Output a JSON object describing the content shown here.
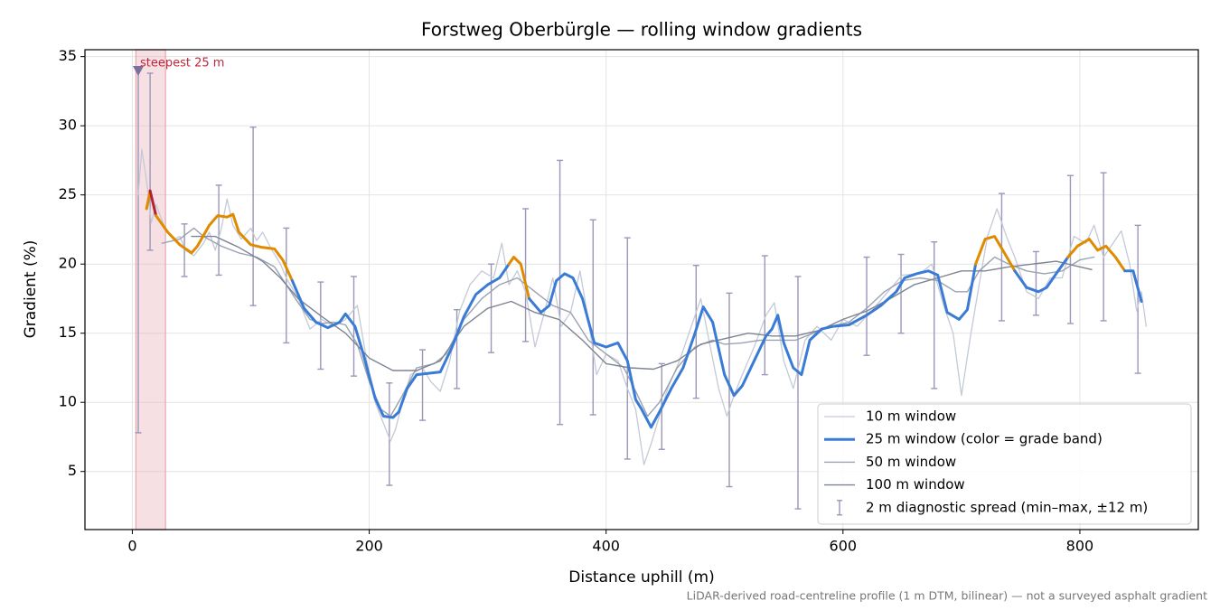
{
  "chart_data": {
    "type": "line",
    "title": "Forstweg Oberbürgle — rolling window gradients",
    "xlabel": "Distance uphill (m)",
    "ylabel": "Gradient (%)",
    "footnote": "LiDAR-derived road-centreline profile (1 m DTM, bilinear) — not a surveyed asphalt gradient",
    "xlim": [
      -40,
      900
    ],
    "ylim": [
      0.8,
      35.5
    ],
    "xticks": [
      0,
      200,
      400,
      600,
      800
    ],
    "yticks": [
      5,
      10,
      15,
      20,
      25,
      30,
      35
    ],
    "grid": true,
    "legend": "lower right",
    "series": [
      {
        "name": "10 m window",
        "color": "#c3cad6",
        "width": 1.3,
        "x": [
          5,
          8,
          12,
          16,
          20,
          28,
          35,
          40,
          45,
          52,
          60,
          65,
          70,
          75,
          80,
          85,
          92,
          100,
          105,
          110,
          118,
          125,
          130,
          140,
          150,
          160,
          170,
          180,
          190,
          198,
          205,
          212,
          218,
          222,
          228,
          235,
          245,
          252,
          260,
          268,
          276,
          285,
          295,
          305,
          312,
          318,
          325,
          332,
          340,
          348,
          355,
          362,
          370,
          378,
          385,
          392,
          400,
          410,
          418,
          425,
          432,
          438,
          445,
          452,
          462,
          472,
          480,
          488,
          495,
          502,
          508,
          515,
          525,
          535,
          542,
          550,
          558,
          568,
          578,
          590,
          600,
          612,
          625,
          640,
          650,
          665,
          675,
          685,
          693,
          700,
          708,
          715,
          722,
          730,
          738,
          745,
          755,
          765,
          775,
          785,
          795,
          805,
          812,
          820,
          828,
          835,
          842,
          848,
          852,
          856
        ],
        "values": [
          25,
          28.3,
          26,
          23,
          24.3,
          22.5,
          21.8,
          22,
          21,
          20.6,
          21.5,
          22.3,
          21,
          22.5,
          24.7,
          22.8,
          21.8,
          22.6,
          21.7,
          22.3,
          21,
          20,
          19,
          17.5,
          15.3,
          16,
          15.5,
          16,
          17,
          13,
          10,
          8.5,
          7.2,
          8,
          10,
          12,
          12.5,
          11.5,
          10.8,
          13,
          16.5,
          18.5,
          19.5,
          19,
          21.5,
          18.5,
          19.5,
          18,
          14,
          16.5,
          19,
          15.5,
          16.5,
          19.5,
          16,
          12,
          13.5,
          13,
          11,
          9.5,
          5.5,
          7,
          9,
          11,
          13,
          15.5,
          17.5,
          14,
          11,
          9,
          10.5,
          12,
          14,
          16.3,
          17.2,
          13,
          11,
          14.5,
          15.5,
          14.5,
          16,
          15.5,
          16.7,
          18.2,
          19.2,
          19.3,
          20,
          17,
          15,
          10.5,
          15,
          18.5,
          22,
          24,
          22,
          20.5,
          18,
          17.5,
          19,
          19,
          22,
          21.5,
          22.8,
          20.5,
          21.5,
          22.4,
          20,
          16.6,
          18,
          15.5
        ]
      },
      {
        "name": "25 m window (color = grade band)",
        "color": "#3a7bd5",
        "width": 3,
        "x": [
          12,
          15,
          20,
          30,
          40,
          50,
          55,
          65,
          72,
          80,
          85,
          90,
          100,
          110,
          120,
          127,
          135,
          145,
          155,
          165,
          175,
          180,
          188,
          195,
          205,
          212,
          220,
          225,
          232,
          240,
          250,
          260,
          270,
          280,
          290,
          300,
          310,
          318,
          322,
          328,
          335,
          345,
          352,
          358,
          365,
          372,
          380,
          390,
          400,
          410,
          418,
          425,
          430,
          438,
          445,
          455,
          465,
          475,
          482,
          490,
          500,
          508,
          515,
          525,
          535,
          540,
          545,
          550,
          558,
          565,
          572,
          582,
          592,
          605,
          620,
          632,
          645,
          652,
          662,
          672,
          680,
          688,
          698,
          705,
          712,
          720,
          728,
          735,
          745,
          755,
          765,
          772,
          780,
          790,
          798,
          808,
          815,
          822,
          830,
          838,
          845,
          852
        ],
        "values": [
          24,
          25.3,
          23.5,
          22.3,
          21.4,
          20.8,
          21.3,
          22.8,
          23.5,
          23.4,
          23.6,
          22.3,
          21.4,
          21.2,
          21.1,
          20.3,
          18.8,
          16.8,
          15.8,
          15.4,
          15.8,
          16.4,
          15.5,
          13.5,
          10.3,
          9,
          8.9,
          9.3,
          11,
          12,
          12.1,
          12.2,
          14,
          16.2,
          17.8,
          18.5,
          19,
          20,
          20.5,
          20,
          17.5,
          16.5,
          17,
          18.8,
          19.3,
          19,
          17.5,
          14.3,
          14,
          14.3,
          13,
          10.2,
          9.5,
          8.2,
          9.3,
          11,
          12.5,
          15,
          16.9,
          15.8,
          12,
          10.5,
          11.2,
          13,
          14.8,
          15.3,
          16.3,
          14.3,
          12.5,
          12,
          14.5,
          15.3,
          15.5,
          15.6,
          16.3,
          17,
          18,
          19,
          19.3,
          19.5,
          19.2,
          16.5,
          16,
          16.7,
          20,
          21.8,
          22,
          21,
          19.5,
          18.3,
          18,
          18.3,
          19.3,
          20.5,
          21.3,
          21.8,
          21,
          21.3,
          20.5,
          19.5,
          19.5,
          17.3
        ],
        "color_bands": {
          "thresholds": [
            20,
            25
          ],
          "colors": [
            "#3a7bd5",
            "#e08a00",
            "#b22234"
          ]
        }
      },
      {
        "name": "50 m window",
        "color": "#9aa2b2",
        "width": 1.4,
        "x": [
          25,
          40,
          52,
          60,
          75,
          90,
          105,
          120,
          130,
          140,
          150,
          160,
          170,
          180,
          190,
          200,
          210,
          218,
          228,
          240,
          255,
          265,
          280,
          295,
          310,
          325,
          340,
          355,
          370,
          385,
          400,
          415,
          425,
          435,
          445,
          460,
          475,
          490,
          500,
          515,
          530,
          545,
          560,
          575,
          590,
          605,
          620,
          635,
          650,
          665,
          680,
          695,
          705,
          715,
          728,
          740,
          755,
          770,
          785,
          800,
          812
        ],
        "values": [
          21.5,
          21.8,
          22.6,
          22,
          21.3,
          20.8,
          20.5,
          19.8,
          18.5,
          17.2,
          16,
          15.7,
          15.8,
          15.6,
          14.2,
          11.5,
          9.5,
          9,
          10.5,
          12.5,
          12.8,
          13.5,
          16,
          17.5,
          18.5,
          19,
          18,
          17,
          16.5,
          14.5,
          13.5,
          12.5,
          10.8,
          9,
          10,
          12.5,
          14,
          14.5,
          14.2,
          14.3,
          14.5,
          14.5,
          14.5,
          15,
          15.5,
          15.8,
          16.8,
          18,
          18.8,
          19,
          18.8,
          18,
          18,
          19.5,
          20.5,
          20,
          19.5,
          19.3,
          19.5,
          20.3,
          20.5
        ]
      },
      {
        "name": "100 m window",
        "color": "#7d8493",
        "width": 1.4,
        "x": [
          50,
          70,
          90,
          110,
          125,
          140,
          160,
          180,
          200,
          220,
          240,
          260,
          280,
          300,
          320,
          340,
          360,
          380,
          400,
          420,
          440,
          460,
          480,
          500,
          520,
          540,
          560,
          580,
          600,
          620,
          640,
          660,
          680,
          700,
          720,
          740,
          760,
          780,
          800,
          810
        ],
        "values": [
          22,
          22,
          21.2,
          20.2,
          19,
          17.5,
          16.2,
          15,
          13.2,
          12.3,
          12.3,
          13,
          15.5,
          16.8,
          17.3,
          16.5,
          16,
          14.5,
          12.8,
          12.5,
          12.4,
          13,
          14.2,
          14.6,
          15,
          14.8,
          14.8,
          15.2,
          16,
          16.6,
          17.5,
          18.5,
          19,
          19.5,
          19.5,
          19.8,
          20,
          20.2,
          19.8,
          19.6
        ]
      }
    ],
    "errorbars": {
      "name": "2 m diagnostic spread (min–max, ±12 m)",
      "color": "#9a97b8",
      "x": [
        5,
        15,
        44,
        73,
        102,
        130,
        159,
        187,
        217,
        245,
        274,
        303,
        332,
        361,
        389,
        418,
        447,
        476,
        504,
        534,
        562,
        620,
        649,
        677,
        734,
        763,
        792,
        820,
        849
      ],
      "low": [
        7.8,
        21,
        19.1,
        19.2,
        17,
        14.3,
        12.4,
        11.9,
        4,
        8.7,
        11,
        13.6,
        14.4,
        8.4,
        9.1,
        5.9,
        6.6,
        10.3,
        3.9,
        12,
        2.3,
        13.4,
        15,
        11,
        15.9,
        16.3,
        15.7,
        15.9,
        12.1
      ],
      "high": [
        34,
        33.8,
        22.9,
        25.7,
        29.9,
        22.6,
        18.7,
        19.1,
        11.4,
        13.8,
        16.7,
        20,
        24,
        27.5,
        23.2,
        21.9,
        12.8,
        19.9,
        17.9,
        20.6,
        19.1,
        20.5,
        20.7,
        21.6,
        25.1,
        20.9,
        26.4,
        26.6,
        22.8
      ]
    },
    "annotation": {
      "text": "steepest 25 m",
      "x_start": 3,
      "x_end": 28,
      "marker_x": 5,
      "marker_y": 34,
      "color": "#c0283c",
      "span_color": "#e8a6b0",
      "marker_color": "#7b6fa0"
    }
  }
}
